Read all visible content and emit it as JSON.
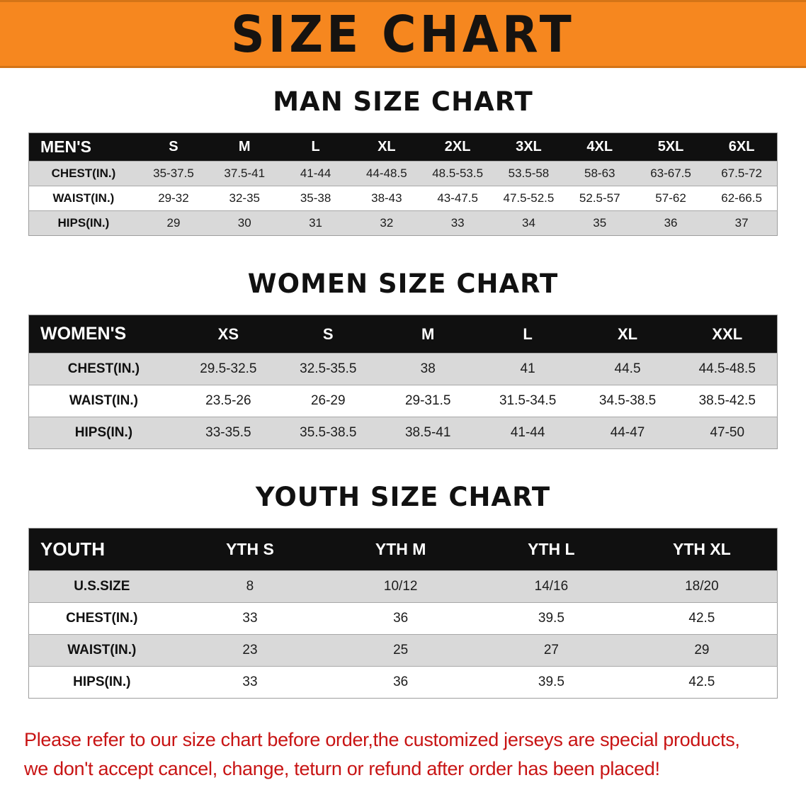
{
  "banner": {
    "title": "SIZE CHART"
  },
  "sections": [
    {
      "id": "man",
      "heading": "MAN SIZE CHART",
      "table": {
        "header": [
          "MEN'S",
          "S",
          "M",
          "L",
          "XL",
          "2XL",
          "3XL",
          "4XL",
          "5XL",
          "6XL"
        ],
        "rows": [
          [
            "CHEST(IN.)",
            "35-37.5",
            "37.5-41",
            "41-44",
            "44-48.5",
            "48.5-53.5",
            "53.5-58",
            "58-63",
            "63-67.5",
            "67.5-72"
          ],
          [
            "WAIST(IN.)",
            "29-32",
            "32-35",
            "35-38",
            "38-43",
            "43-47.5",
            "47.5-52.5",
            "52.5-57",
            "57-62",
            "62-66.5"
          ],
          [
            "HIPS(IN.)",
            "29",
            "30",
            "31",
            "32",
            "33",
            "34",
            "35",
            "36",
            "37"
          ]
        ]
      }
    },
    {
      "id": "women",
      "heading": "WOMEN SIZE CHART",
      "table": {
        "header": [
          "WOMEN'S",
          "XS",
          "S",
          "M",
          "L",
          "XL",
          "XXL"
        ],
        "rows": [
          [
            "CHEST(IN.)",
            "29.5-32.5",
            "32.5-35.5",
            "38",
            "41",
            "44.5",
            "44.5-48.5"
          ],
          [
            "WAIST(IN.)",
            "23.5-26",
            "26-29",
            "29-31.5",
            "31.5-34.5",
            "34.5-38.5",
            "38.5-42.5"
          ],
          [
            "HIPS(IN.)",
            "33-35.5",
            "35.5-38.5",
            "38.5-41",
            "41-44",
            "44-47",
            "47-50"
          ]
        ]
      }
    },
    {
      "id": "youth",
      "heading": "YOUTH SIZE CHART",
      "table": {
        "header": [
          "YOUTH",
          "YTH S",
          "YTH M",
          "YTH L",
          "YTH XL"
        ],
        "rows": [
          [
            "U.S.SIZE",
            "8",
            "10/12",
            "14/16",
            "18/20"
          ],
          [
            "CHEST(IN.)",
            "33",
            "36",
            "39.5",
            "42.5"
          ],
          [
            "WAIST(IN.)",
            "23",
            "25",
            "27",
            "29"
          ],
          [
            "HIPS(IN.)",
            "33",
            "36",
            "39.5",
            "42.5"
          ]
        ]
      }
    }
  ],
  "footer": {
    "lines": [
      "Please refer to our size chart before order,the customized jerseys are special products,",
      "we don't accept cancel, change, teturn or refund after order has been placed!"
    ]
  },
  "colors": {
    "banner_orange": "#f6871f",
    "table_header_black": "#101010",
    "stripe_gray": "#d9d9d9",
    "disclaimer_red": "#c81414"
  }
}
